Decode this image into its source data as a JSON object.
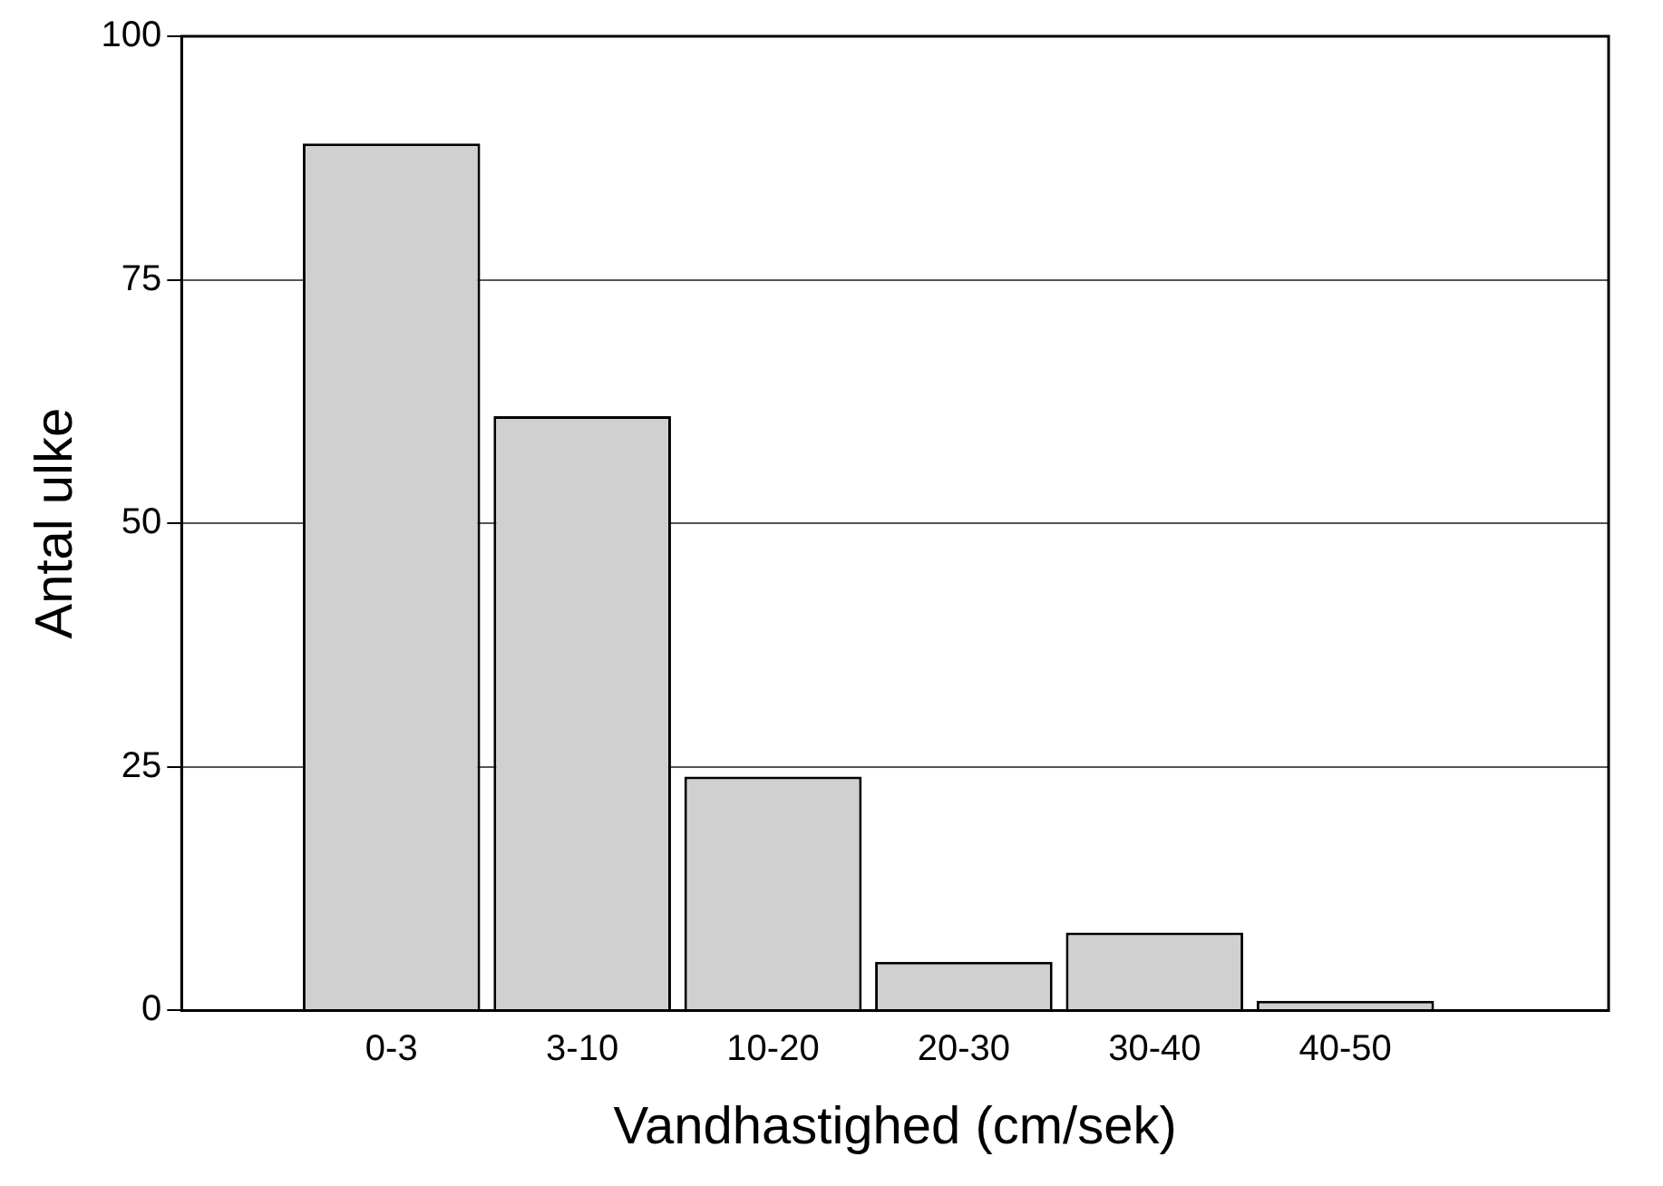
{
  "chart_data": {
    "type": "bar",
    "xlabel": "Vandhastighed (cm/sek)",
    "ylabel": "Antal ulke",
    "categories": [
      "0-3",
      "3-10",
      "10-20",
      "20-30",
      "30-40",
      "40-50"
    ],
    "values": [
      89,
      61,
      24,
      5,
      8,
      1
    ],
    "color": "#d0d0d0",
    "ylim": [
      0,
      100
    ],
    "yticks": [
      0,
      25,
      50,
      75,
      100
    ],
    "grid": "y",
    "legend": false
  }
}
